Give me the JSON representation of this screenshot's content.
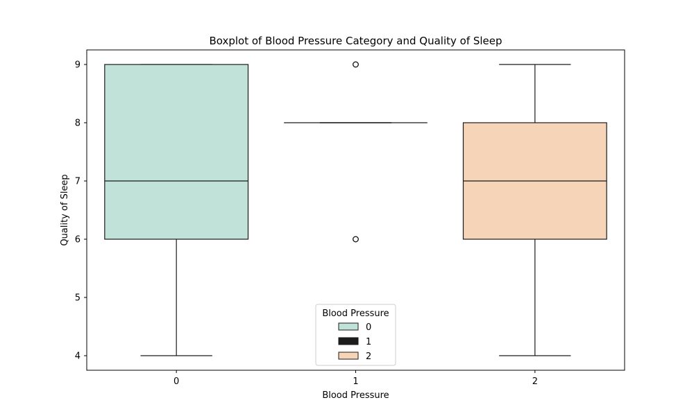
{
  "chart_data": {
    "type": "box",
    "title": "Boxplot of Blood Pressure Category and Quality of Sleep",
    "xlabel": "Blood Pressure",
    "ylabel": "Quality of Sleep",
    "categories": [
      "0",
      "1",
      "2"
    ],
    "yticks": [
      "4",
      "5",
      "6",
      "7",
      "8",
      "9"
    ],
    "ylim": [
      3.75,
      9.25
    ],
    "grid": false,
    "legend": {
      "title": "Blood Pressure",
      "placement": "lower-center",
      "entries": [
        "0",
        "1",
        "2"
      ]
    },
    "colors": [
      "#c1e2d9",
      "#1c1c1c",
      "#f6d4b7"
    ],
    "boxes": [
      {
        "category": "0",
        "whisker_low": 4,
        "q1": 6,
        "median": 7,
        "q3": 9,
        "whisker_high": 9,
        "outliers": []
      },
      {
        "category": "1",
        "whisker_low": 8,
        "q1": 8,
        "median": 8,
        "q3": 8,
        "whisker_high": 8,
        "outliers": [
          6,
          9
        ]
      },
      {
        "category": "2",
        "whisker_low": 4,
        "q1": 6,
        "median": 7,
        "q3": 8,
        "whisker_high": 9,
        "outliers": []
      }
    ]
  }
}
